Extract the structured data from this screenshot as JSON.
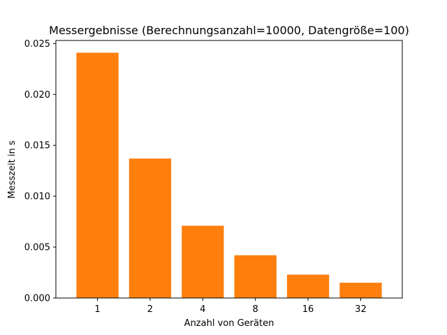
{
  "chart_data": {
    "type": "bar",
    "title": "Messergebnisse (Berechnungsanzahl=10000, Datengröße=100)",
    "xlabel": "Anzahl von Geräten",
    "ylabel": "Messzeit in s",
    "categories": [
      "1",
      "2",
      "4",
      "8",
      "16",
      "32"
    ],
    "values": [
      0.0241,
      0.0137,
      0.0071,
      0.0042,
      0.0023,
      0.0015
    ],
    "ylim": [
      0,
      0.0253
    ],
    "yticks": [
      0.0,
      0.005,
      0.01,
      0.015,
      0.02,
      0.025
    ],
    "ytick_labels": [
      "0.000",
      "0.005",
      "0.010",
      "0.015",
      "0.020",
      "0.025"
    ],
    "grid": false,
    "legend": false,
    "bar_color": "#ff7f0e"
  }
}
